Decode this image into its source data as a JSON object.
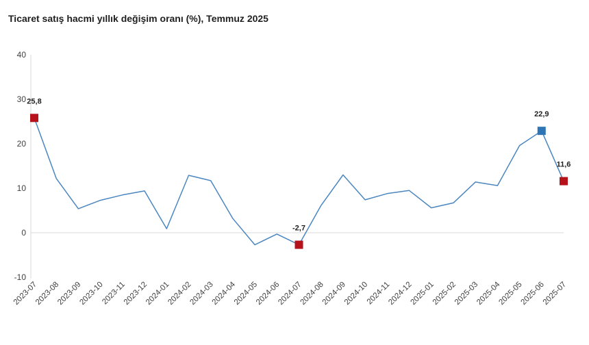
{
  "chart_data": {
    "type": "line",
    "title": "Ticaret satış hacmi yıllık değişim oranı (%), Temmuz 2025",
    "xlabel": "",
    "ylabel": "",
    "ylim": [
      -10,
      40
    ],
    "yticks": [
      -10,
      0,
      10,
      20,
      30,
      40
    ],
    "ytick_labels": [
      "-10",
      "0",
      "10",
      "20",
      "30",
      "40"
    ],
    "categories": [
      "2023-07",
      "2023-08",
      "2023-09",
      "2023-10",
      "2023-11",
      "2023-12",
      "2024-01",
      "2024-02",
      "2024-03",
      "2024-04",
      "2024-05",
      "2024-06",
      "2024-07",
      "2024-08",
      "2024-09",
      "2024-10",
      "2024-11",
      "2024-12",
      "2025-01",
      "2025-02",
      "2025-03",
      "2025-04",
      "2025-05",
      "2025-06",
      "2025-07"
    ],
    "series": [
      {
        "name": "Ticaret satış hacmi yıllık değişim oranı (%)",
        "values": [
          25.8,
          12.2,
          5.4,
          7.3,
          8.5,
          9.4,
          0.9,
          12.9,
          11.7,
          3.2,
          -2.7,
          -0.3,
          -2.7,
          6.1,
          13.0,
          7.4,
          8.8,
          9.5,
          5.6,
          6.7,
          11.4,
          10.6,
          19.6,
          22.9,
          11.6
        ],
        "color": "#4a86c0"
      }
    ],
    "highlights": [
      {
        "index": 0,
        "label": "25,8",
        "color": "#b5121b"
      },
      {
        "index": 12,
        "label": "-2,7",
        "color": "#b5121b"
      },
      {
        "index": 23,
        "label": "22,9",
        "color": "#2e75b6"
      },
      {
        "index": 24,
        "label": "11,6",
        "color": "#b5121b"
      }
    ],
    "grid": false,
    "zero_line_color": "#d9d9d9",
    "legend": "none"
  }
}
